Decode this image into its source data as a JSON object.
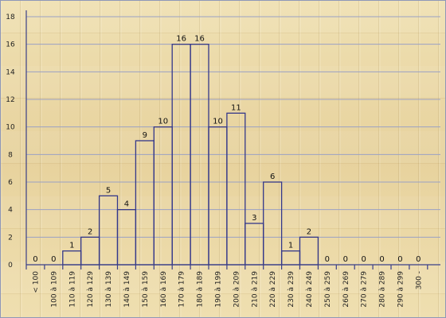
{
  "chart_data": {
    "type": "bar",
    "title": "",
    "xlabel": "",
    "ylabel": "",
    "ylim": [
      0,
      18
    ],
    "yticks": [
      0,
      2,
      4,
      6,
      8,
      10,
      12,
      14,
      16,
      18
    ],
    "grid": true,
    "categories": [
      "< 100",
      "100 à 109",
      "110 à 119",
      "120 à 129",
      "130 à 139",
      "140 à 149",
      "150 à 159",
      "160 à 169",
      "170 à 179",
      "180 à 189",
      "190 à 199",
      "200 à 209",
      "210 à 219",
      "220 à 229",
      "230 à 239",
      "240 à 249",
      "250 à 259",
      "260 à 269",
      "270 à 279",
      "280 à 289",
      "290 à 299",
      "300 -"
    ],
    "values": [
      0,
      0,
      1,
      2,
      5,
      4,
      9,
      10,
      16,
      16,
      10,
      11,
      3,
      6,
      1,
      2,
      0,
      0,
      0,
      0,
      0,
      0
    ],
    "colors": {
      "bar_stroke": "#34388a",
      "grid": "#9aa1c4"
    }
  }
}
